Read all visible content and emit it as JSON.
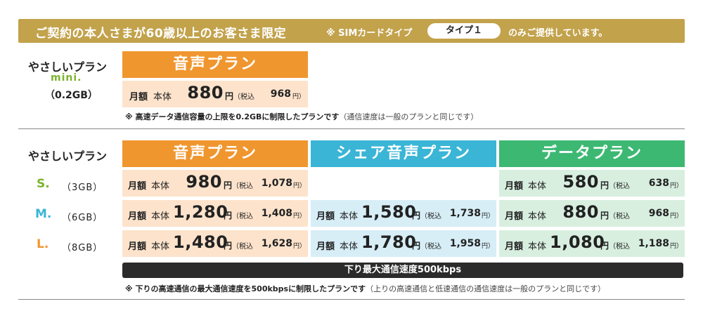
{
  "banner": {
    "title": "ご契約の本人さまが60歳以上のお客さま限定",
    "note_prefix": "※ SIMカードタイプ",
    "sim_type": "タイプ１",
    "note_suffix": "のみご提供しています。"
  },
  "mini_section": {
    "plan_name": "やさしいプラン",
    "size_tag": "mini.",
    "capacity": "（0.2GB）",
    "header": "音声プラン",
    "row": {
      "monthly": "月額",
      "base": "本体",
      "price": "880",
      "yen": "円",
      "tax_label": "（税込",
      "tax_price": "968",
      "tax_yen": "円）"
    },
    "note_main": "※ 高速データ通信容量の上限を0.2GBに制限したプランです",
    "note_sub": "（通信速度は一般のプランと同じです）"
  },
  "main_section": {
    "plan_name": "やさしいプラン",
    "headers": {
      "voice": "音声プラン",
      "share": "シェア音声プラン",
      "data": "データプラン"
    },
    "sizes": [
      {
        "label": "S.",
        "gb": "（3GB）",
        "color": "#7ab42c"
      },
      {
        "label": "M.",
        "gb": "（6GB）",
        "color": "#3ab5d6"
      },
      {
        "label": "L.",
        "gb": "（8GB）",
        "color": "#f0962f"
      }
    ],
    "common": {
      "monthly": "月額",
      "base": "本体",
      "yen": "円",
      "tax_label": "（税込",
      "tax_yen": "円）"
    },
    "voice": [
      {
        "price": "980",
        "tax_price": "1,078"
      },
      {
        "price": "1,280",
        "tax_price": "1,408"
      },
      {
        "price": "1,480",
        "tax_price": "1,628"
      }
    ],
    "share": [
      {
        "price": "1,580",
        "tax_price": "1,738"
      },
      {
        "price": "1,780",
        "tax_price": "1,958"
      }
    ],
    "data": [
      {
        "price": "580",
        "tax_price": "638"
      },
      {
        "price": "880",
        "tax_price": "968"
      },
      {
        "price": "1,080",
        "tax_price": "1,188"
      }
    ],
    "speed_bar": "下り最大通信速度500kbps",
    "note_main": "※ 下りの高速通信の最大通信速度を500kbpsに制限したプランです",
    "note_sub": "（上りの高速通信と低速通信の通信速度は一般のプランと同じです）"
  },
  "colors": {
    "gold": "#c2a24b",
    "orange": "#f0962f",
    "blue": "#3ab5d6",
    "green": "#3db873"
  }
}
